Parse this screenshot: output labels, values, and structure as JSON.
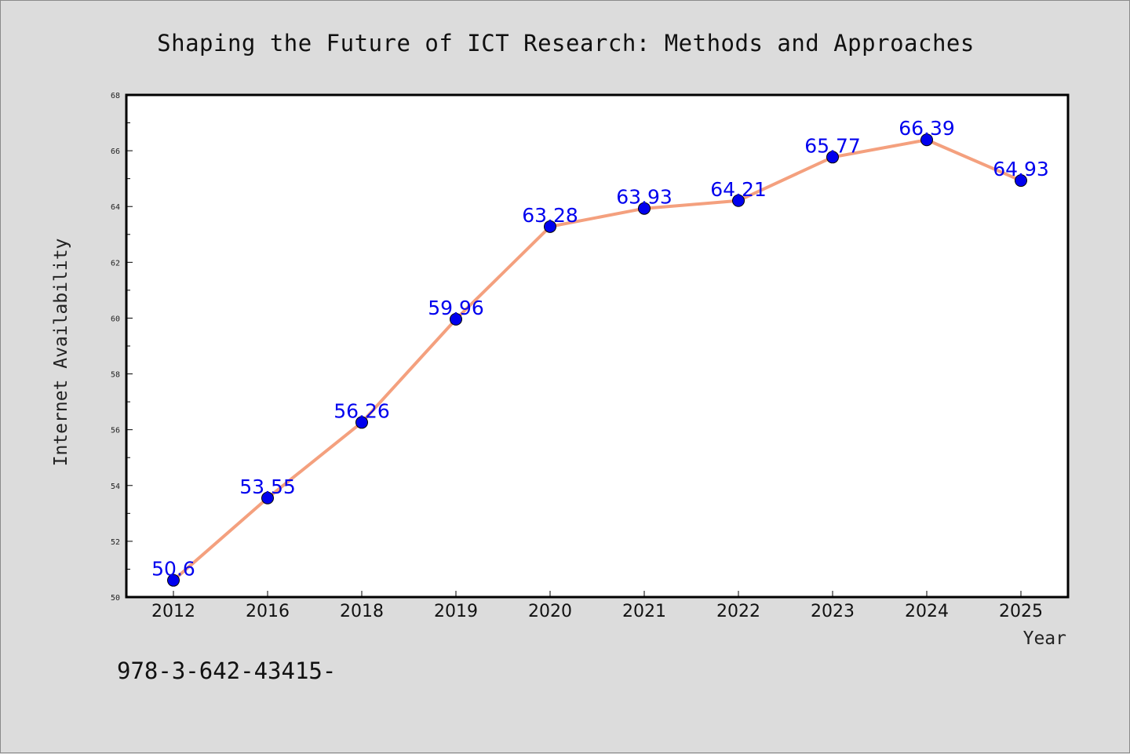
{
  "chart_data": {
    "type": "line",
    "title": "Shaping the Future of ICT Research: Methods and Approaches",
    "xlabel": "Year",
    "ylabel": "Internet Availability",
    "categories": [
      "2012",
      "2016",
      "2018",
      "2019",
      "2020",
      "2021",
      "2022",
      "2023",
      "2024",
      "2025"
    ],
    "series": [
      {
        "values": [
          50.6,
          53.55,
          56.26,
          59.96,
          63.28,
          63.93,
          64.21,
          65.77,
          66.39,
          64.93
        ],
        "labels": [
          "50.6",
          "53.55",
          "56.26",
          "59.96",
          "63.28",
          "63.93",
          "64.21",
          "65.77",
          "66.39",
          "64.93"
        ],
        "line_color": "#f4a07e",
        "marker_color": "#0000ee"
      }
    ],
    "ylim": [
      50,
      68
    ],
    "yticks": [
      "50",
      "52",
      "54",
      "56",
      "58",
      "60",
      "62",
      "64",
      "66",
      "68"
    ],
    "grid": false
  },
  "footer": {
    "text": "978-3-642-43415-"
  }
}
